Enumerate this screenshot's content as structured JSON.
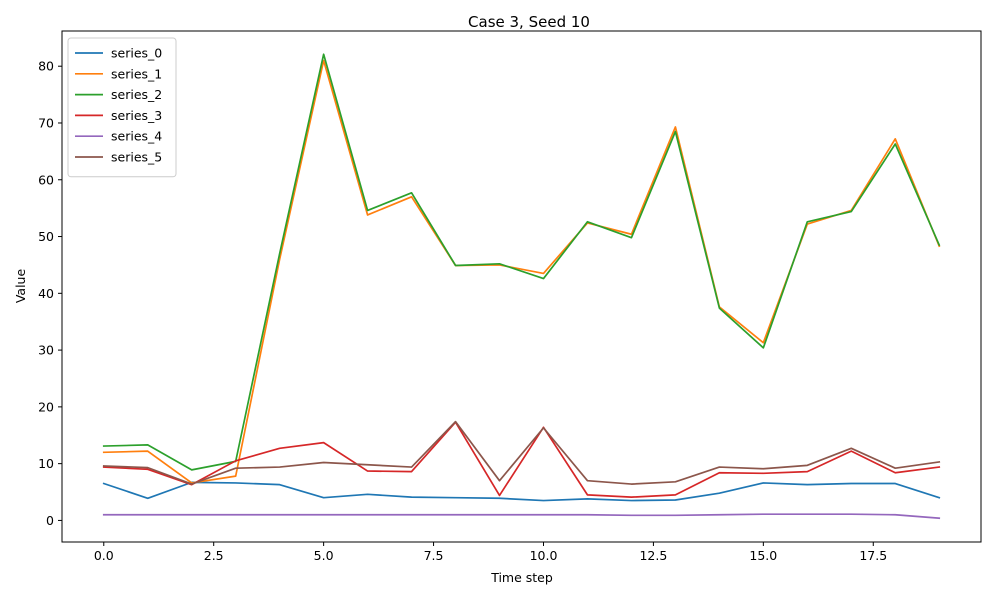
{
  "chart_data": {
    "type": "line",
    "title": "Case 3, Seed 10",
    "xlabel": "Time step",
    "ylabel": "Value",
    "x": [
      0,
      1,
      2,
      3,
      4,
      5,
      6,
      7,
      8,
      9,
      10,
      11,
      12,
      13,
      14,
      15,
      16,
      17,
      18,
      19
    ],
    "xlim": [
      -0.95,
      19.95
    ],
    "ylim": [
      -3.8,
      86.2
    ],
    "xticks": [
      0.0,
      2.5,
      5.0,
      7.5,
      10.0,
      12.5,
      15.0,
      17.5
    ],
    "xtick_labels": [
      "0.0",
      "2.5",
      "5.0",
      "7.5",
      "10.0",
      "12.5",
      "15.0",
      "17.5"
    ],
    "yticks": [
      0,
      10,
      20,
      30,
      40,
      50,
      60,
      70,
      80
    ],
    "ytick_labels": [
      "0",
      "10",
      "20",
      "30",
      "40",
      "50",
      "60",
      "70",
      "80"
    ],
    "grid": false,
    "legend_position": "top-left",
    "series": [
      {
        "name": "series_0",
        "color": "#1f77b4",
        "values": [
          6.5,
          3.9,
          6.7,
          6.6,
          6.3,
          4.0,
          4.6,
          4.1,
          4.0,
          3.9,
          3.5,
          3.8,
          3.5,
          3.6,
          4.8,
          6.6,
          6.3,
          6.5,
          6.5,
          4.0
        ]
      },
      {
        "name": "series_1",
        "color": "#ff7f0e",
        "values": [
          12.0,
          12.2,
          6.6,
          7.8,
          46.0,
          81.0,
          53.8,
          57.0,
          44.9,
          45.0,
          43.5,
          52.4,
          50.4,
          69.3,
          37.6,
          31.3,
          52.2,
          54.6,
          67.2,
          48.3
        ]
      },
      {
        "name": "series_2",
        "color": "#2ca02c",
        "values": [
          13.1,
          13.3,
          8.9,
          10.4,
          47.0,
          82.1,
          54.6,
          57.7,
          44.9,
          45.2,
          42.6,
          52.6,
          49.8,
          68.5,
          37.4,
          30.4,
          52.6,
          54.4,
          66.3,
          48.5
        ]
      },
      {
        "name": "series_3",
        "color": "#d62728",
        "values": [
          9.4,
          9.0,
          6.3,
          10.5,
          12.7,
          13.7,
          8.7,
          8.6,
          17.3,
          4.4,
          16.4,
          4.5,
          4.1,
          4.5,
          8.4,
          8.3,
          8.6,
          12.2,
          8.4,
          9.4
        ]
      },
      {
        "name": "series_4",
        "color": "#9467bd",
        "values": [
          1.0,
          1.0,
          1.0,
          1.0,
          1.0,
          1.0,
          1.0,
          1.0,
          1.0,
          1.0,
          1.0,
          1.0,
          0.9,
          0.9,
          1.0,
          1.1,
          1.1,
          1.1,
          1.0,
          0.4
        ]
      },
      {
        "name": "series_5",
        "color": "#8c564b",
        "values": [
          9.6,
          9.3,
          6.4,
          9.2,
          9.4,
          10.2,
          9.8,
          9.4,
          17.4,
          7.0,
          16.3,
          7.0,
          6.4,
          6.8,
          9.4,
          9.1,
          9.7,
          12.7,
          9.2,
          10.3
        ]
      }
    ]
  }
}
